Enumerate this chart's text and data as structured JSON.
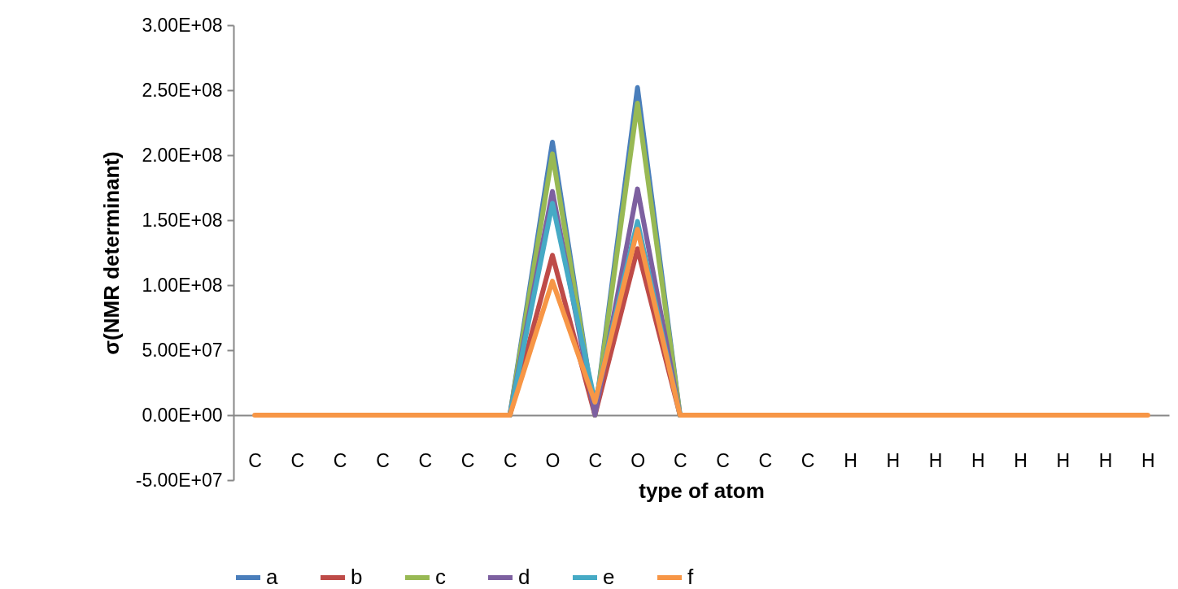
{
  "chart_data": {
    "type": "line",
    "xlabel": "type of atom",
    "ylabel": "σ(NMR determinant)",
    "categories": [
      "C",
      "C",
      "C",
      "C",
      "C",
      "C",
      "C",
      "O",
      "C",
      "O",
      "C",
      "C",
      "C",
      "C",
      "H",
      "H",
      "H",
      "H",
      "H",
      "H",
      "H",
      "H"
    ],
    "ylim": [
      -50000000,
      300000000
    ],
    "yticks": [
      {
        "value": -50000000,
        "label": "-5.00E+07"
      },
      {
        "value": 0,
        "label": "0.00E+00"
      },
      {
        "value": 50000000,
        "label": "5.00E+07"
      },
      {
        "value": 100000000,
        "label": "1.00E+08"
      },
      {
        "value": 150000000,
        "label": "1.50E+08"
      },
      {
        "value": 200000000,
        "label": "2.00E+08"
      },
      {
        "value": 250000000,
        "label": "2.50E+08"
      },
      {
        "value": 300000000,
        "label": "3.00E+08"
      }
    ],
    "grid": false,
    "legend": "bottom",
    "marker": "none",
    "line_style": "solid",
    "series": [
      {
        "name": "a",
        "color": "#4a7ebb",
        "values": [
          null,
          null,
          null,
          null,
          null,
          null,
          0,
          210000000,
          0,
          252000000,
          0,
          null,
          null,
          null,
          null,
          null,
          null,
          null,
          null,
          null,
          null,
          null
        ]
      },
      {
        "name": "b",
        "color": "#be4b48",
        "values": [
          null,
          null,
          null,
          null,
          null,
          null,
          0,
          123000000,
          0,
          128000000,
          0,
          null,
          null,
          null,
          null,
          null,
          null,
          null,
          null,
          null,
          null,
          null
        ]
      },
      {
        "name": "c",
        "color": "#98b954",
        "values": [
          null,
          null,
          null,
          null,
          null,
          null,
          0,
          201000000,
          0,
          240000000,
          0,
          null,
          null,
          null,
          null,
          null,
          null,
          null,
          null,
          null,
          null,
          null
        ]
      },
      {
        "name": "d",
        "color": "#7d60a0",
        "values": [
          null,
          null,
          null,
          null,
          null,
          null,
          0,
          172000000,
          0,
          174000000,
          0,
          null,
          null,
          null,
          null,
          null,
          null,
          null,
          null,
          null,
          null,
          null
        ]
      },
      {
        "name": "e",
        "color": "#46aac5",
        "values": [
          null,
          null,
          null,
          null,
          null,
          null,
          0,
          163000000,
          10000000,
          149000000,
          0,
          null,
          null,
          null,
          null,
          null,
          null,
          null,
          null,
          null,
          null,
          null
        ]
      },
      {
        "name": "f",
        "color": "#f79646",
        "values": [
          0,
          0,
          0,
          0,
          0,
          0,
          0,
          103000000,
          10000000,
          143000000,
          0,
          0,
          0,
          0,
          0,
          0,
          0,
          0,
          0,
          0,
          0,
          0
        ]
      }
    ]
  }
}
